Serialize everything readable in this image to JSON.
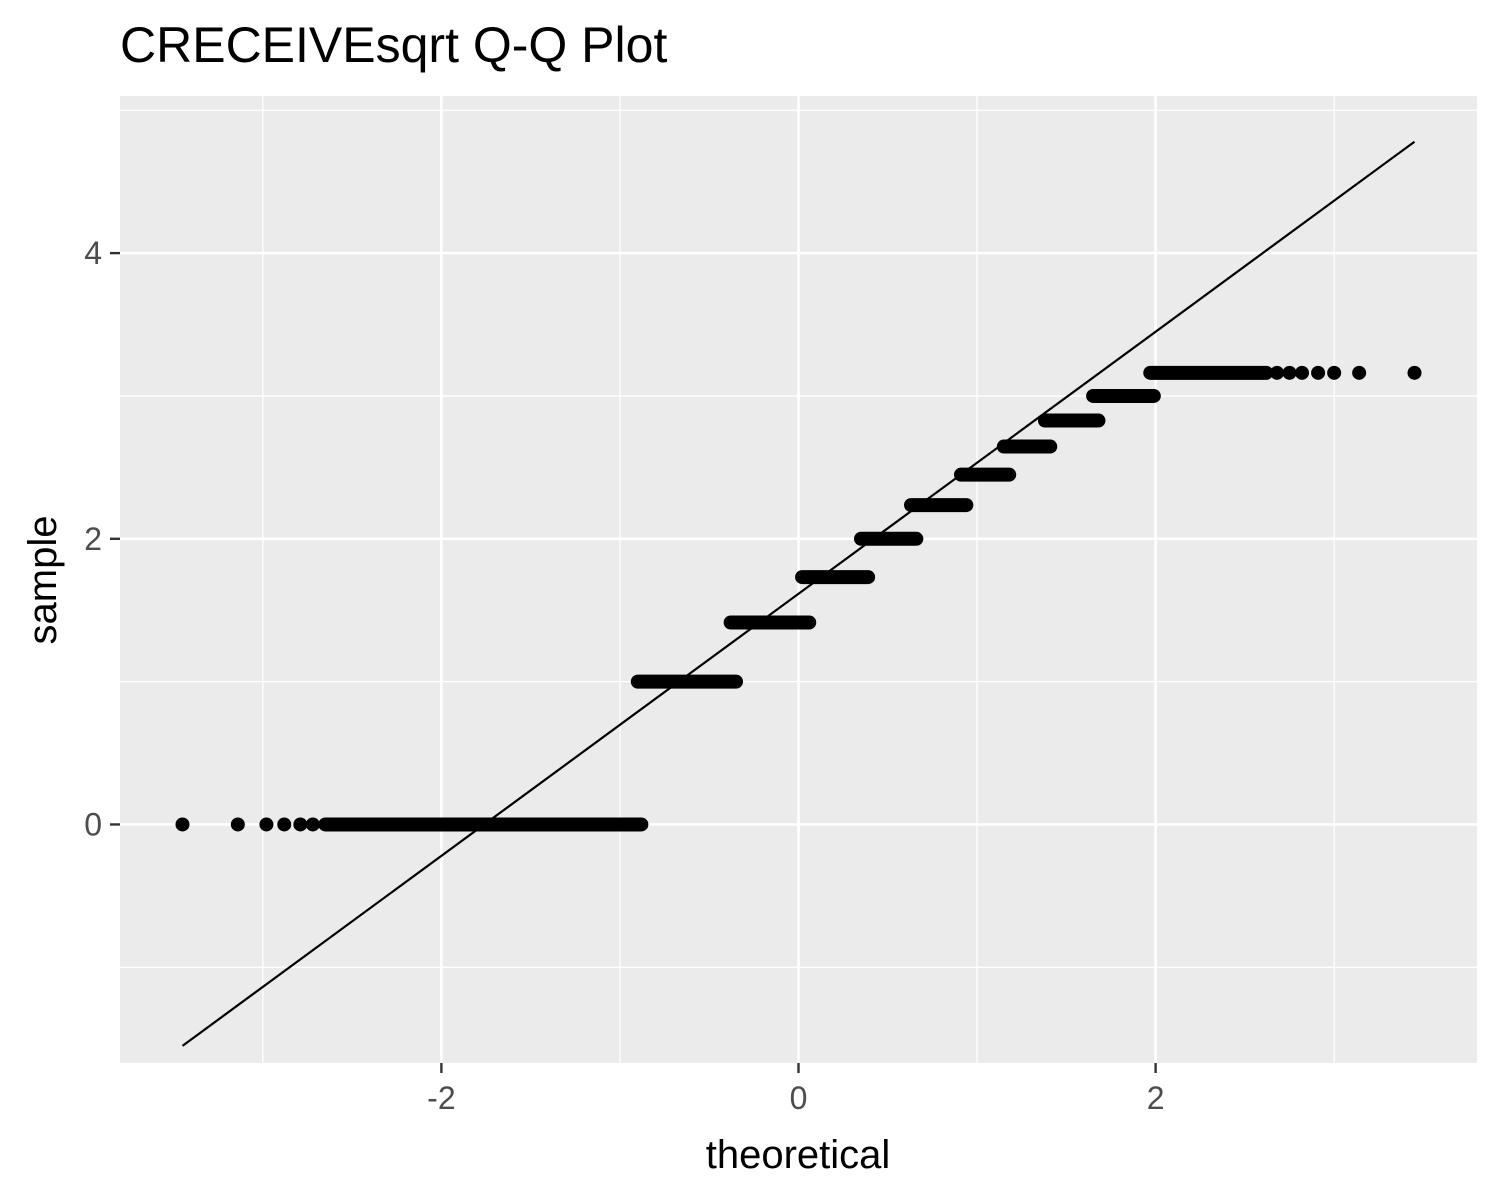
{
  "chart_data": {
    "type": "scatter",
    "title": "CRECEIVEsqrt Q-Q Plot",
    "xlabel": "theoretical",
    "ylabel": "sample",
    "xlim": [
      -3.8,
      3.8
    ],
    "ylim": [
      -1.67,
      5.1
    ],
    "x_ticks": [
      -2,
      0,
      2
    ],
    "x_tick_labels": [
      "-2",
      "0",
      "2"
    ],
    "y_ticks": [
      0,
      2,
      4
    ],
    "y_tick_labels": [
      "0",
      "2",
      "4"
    ],
    "grid": true,
    "legend": "none",
    "colors": {
      "panel": "#ebebeb",
      "grid": "#ffffff",
      "points": "#000000",
      "line": "#000000",
      "tick_text": "#4d4d4d"
    },
    "reference_line": {
      "x": [
        -3.45,
        3.45
      ],
      "y": [
        -1.55,
        4.78
      ]
    },
    "point_groups": [
      {
        "y": 0,
        "x_range": [
          -2.65,
          -0.88
        ],
        "dense": true,
        "isolated_x": [
          -3.45,
          -3.14,
          -2.98,
          -2.88,
          -2.79,
          -2.72
        ]
      },
      {
        "y": 1,
        "x_range": [
          -0.9,
          -0.35
        ],
        "dense": true,
        "isolated_x": []
      },
      {
        "y": 1.414,
        "x_range": [
          -0.38,
          0.06
        ],
        "dense": true,
        "isolated_x": []
      },
      {
        "y": 1.732,
        "x_range": [
          0.02,
          0.39
        ],
        "dense": true,
        "isolated_x": []
      },
      {
        "y": 2,
        "x_range": [
          0.35,
          0.66
        ],
        "dense": true,
        "isolated_x": []
      },
      {
        "y": 2.236,
        "x_range": [
          0.63,
          0.94
        ],
        "dense": true,
        "isolated_x": []
      },
      {
        "y": 2.449,
        "x_range": [
          0.91,
          1.18
        ],
        "dense": true,
        "isolated_x": []
      },
      {
        "y": 2.646,
        "x_range": [
          1.15,
          1.41
        ],
        "dense": true,
        "isolated_x": []
      },
      {
        "y": 2.828,
        "x_range": [
          1.38,
          1.68
        ],
        "dense": true,
        "isolated_x": []
      },
      {
        "y": 3,
        "x_range": [
          1.65,
          1.99
        ],
        "dense": true,
        "isolated_x": []
      },
      {
        "y": 3.162,
        "x_range": [
          1.97,
          2.62
        ],
        "dense": true,
        "isolated_x": [
          2.68,
          2.75,
          2.82,
          2.91,
          3.0,
          3.14,
          3.45
        ]
      }
    ]
  }
}
